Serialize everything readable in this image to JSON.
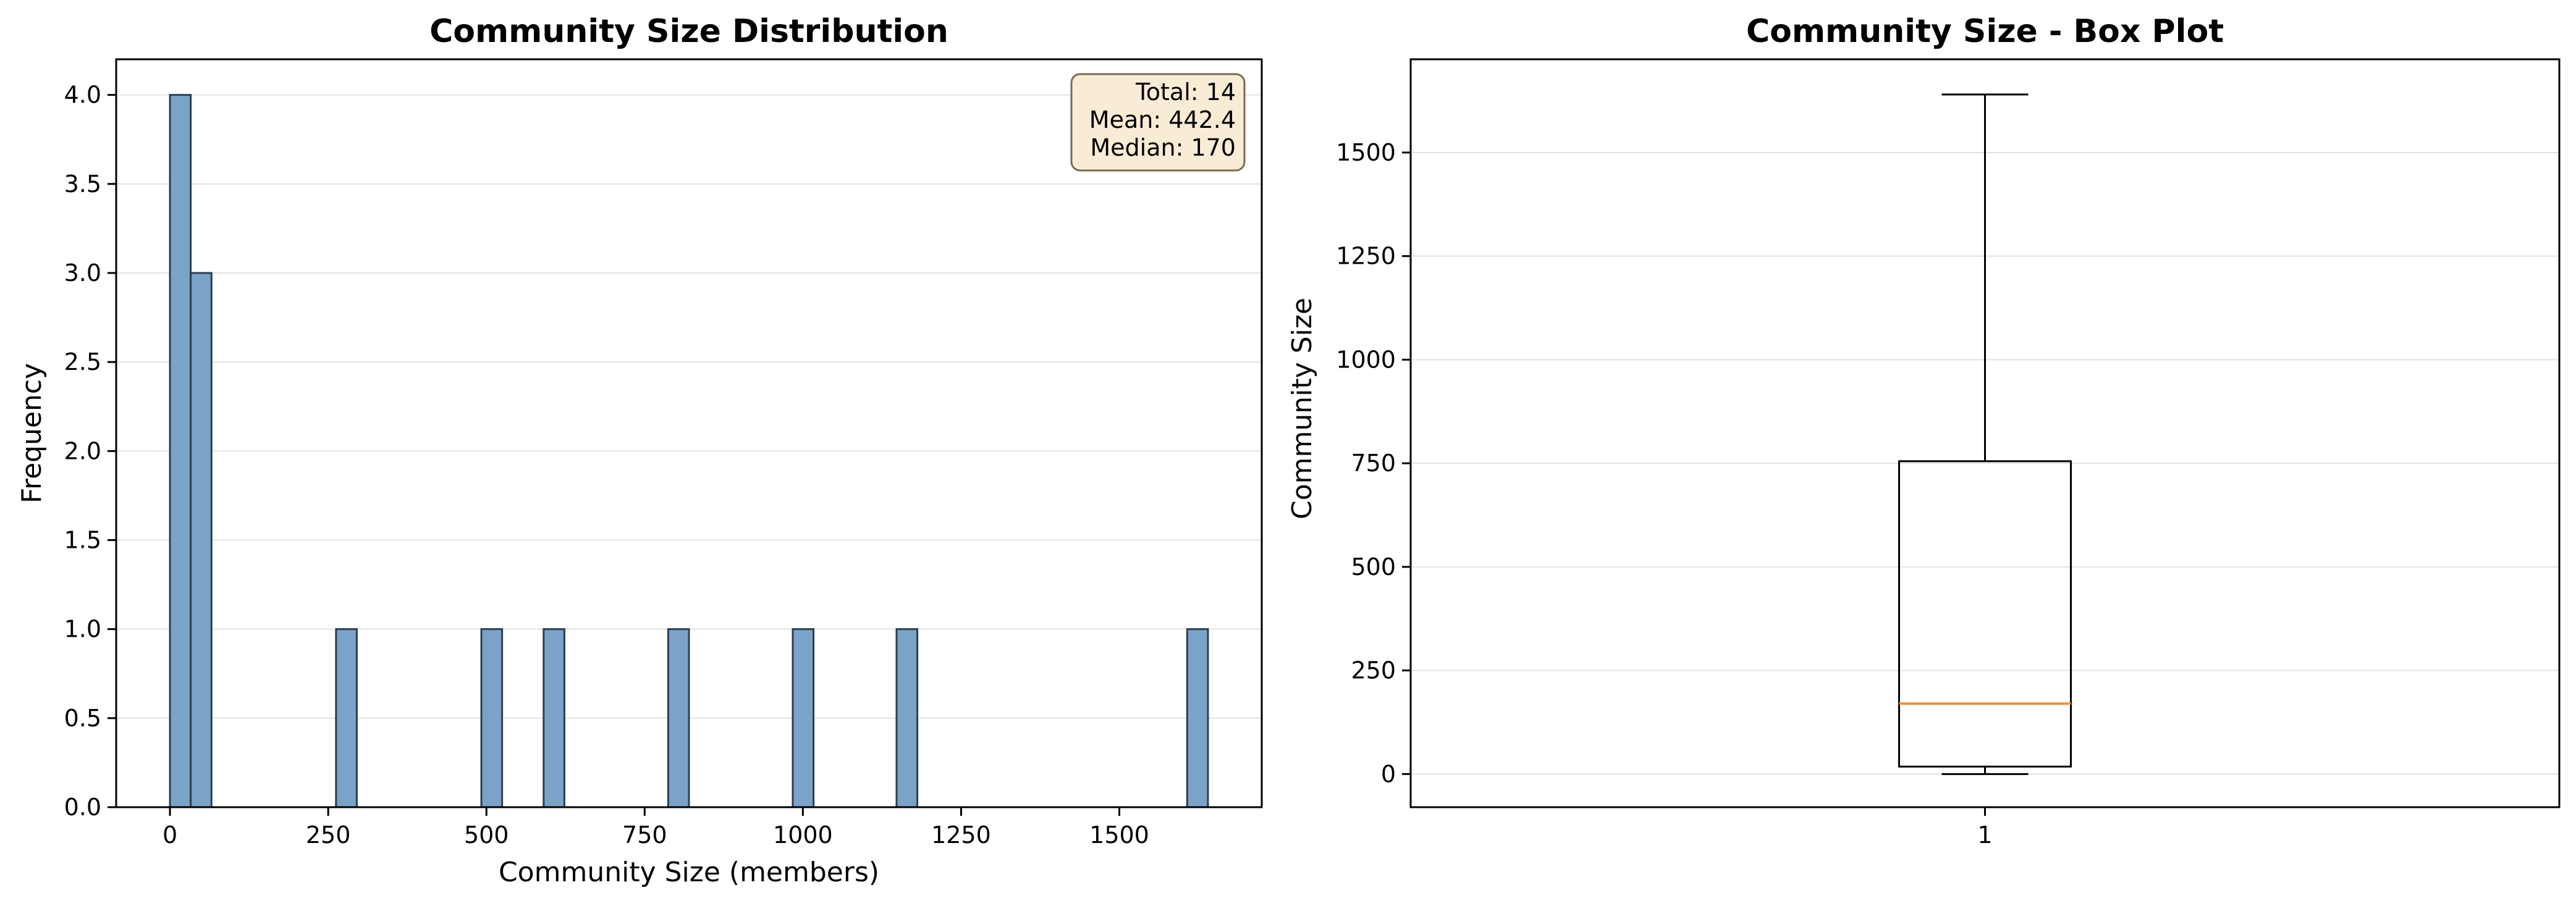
{
  "chart_data": [
    {
      "type": "bar",
      "subtype": "histogram",
      "title": "Community Size Distribution",
      "xlabel": "Community Size (members)",
      "ylabel": "Frequency",
      "xlim": [
        -85,
        1725
      ],
      "ylim": [
        0,
        4.2
      ],
      "xticks": [
        0,
        250,
        500,
        750,
        1000,
        1250,
        1500
      ],
      "yticks": [
        "0.0",
        "0.5",
        "1.0",
        "1.5",
        "2.0",
        "2.5",
        "3.0",
        "3.5",
        "4.0"
      ],
      "grid": "y",
      "bin_width": 32.8,
      "bins": [
        {
          "start": 0,
          "count": 4
        },
        {
          "start": 32.8,
          "count": 3
        },
        {
          "start": 262.4,
          "count": 1
        },
        {
          "start": 492,
          "count": 1
        },
        {
          "start": 590.4,
          "count": 1
        },
        {
          "start": 787.2,
          "count": 1
        },
        {
          "start": 984,
          "count": 1
        },
        {
          "start": 1148,
          "count": 1
        },
        {
          "start": 1607.2,
          "count": 1
        }
      ],
      "bar_color": "#7aa3c7",
      "bar_edge_color": "#2c3e50",
      "stats_box": {
        "placement": "top-right",
        "lines": [
          "Total: 14",
          "Mean: 442.4",
          "Median: 170"
        ],
        "face_color": "#f9ecd4",
        "edge_color": "#7a6a55"
      }
    },
    {
      "type": "box",
      "title": "Community Size - Box Plot",
      "xlabel": "",
      "ylabel": "Community Size",
      "ylim": [
        -80,
        1725
      ],
      "yticks": [
        0,
        250,
        500,
        750,
        1000,
        1250,
        1500
      ],
      "xtick_labels": [
        "1"
      ],
      "grid": "y",
      "box": {
        "whisker_low": 0,
        "q1": 18,
        "median": 170,
        "q3": 755,
        "whisker_high": 1640
      },
      "median_color": "#e8943a"
    }
  ]
}
